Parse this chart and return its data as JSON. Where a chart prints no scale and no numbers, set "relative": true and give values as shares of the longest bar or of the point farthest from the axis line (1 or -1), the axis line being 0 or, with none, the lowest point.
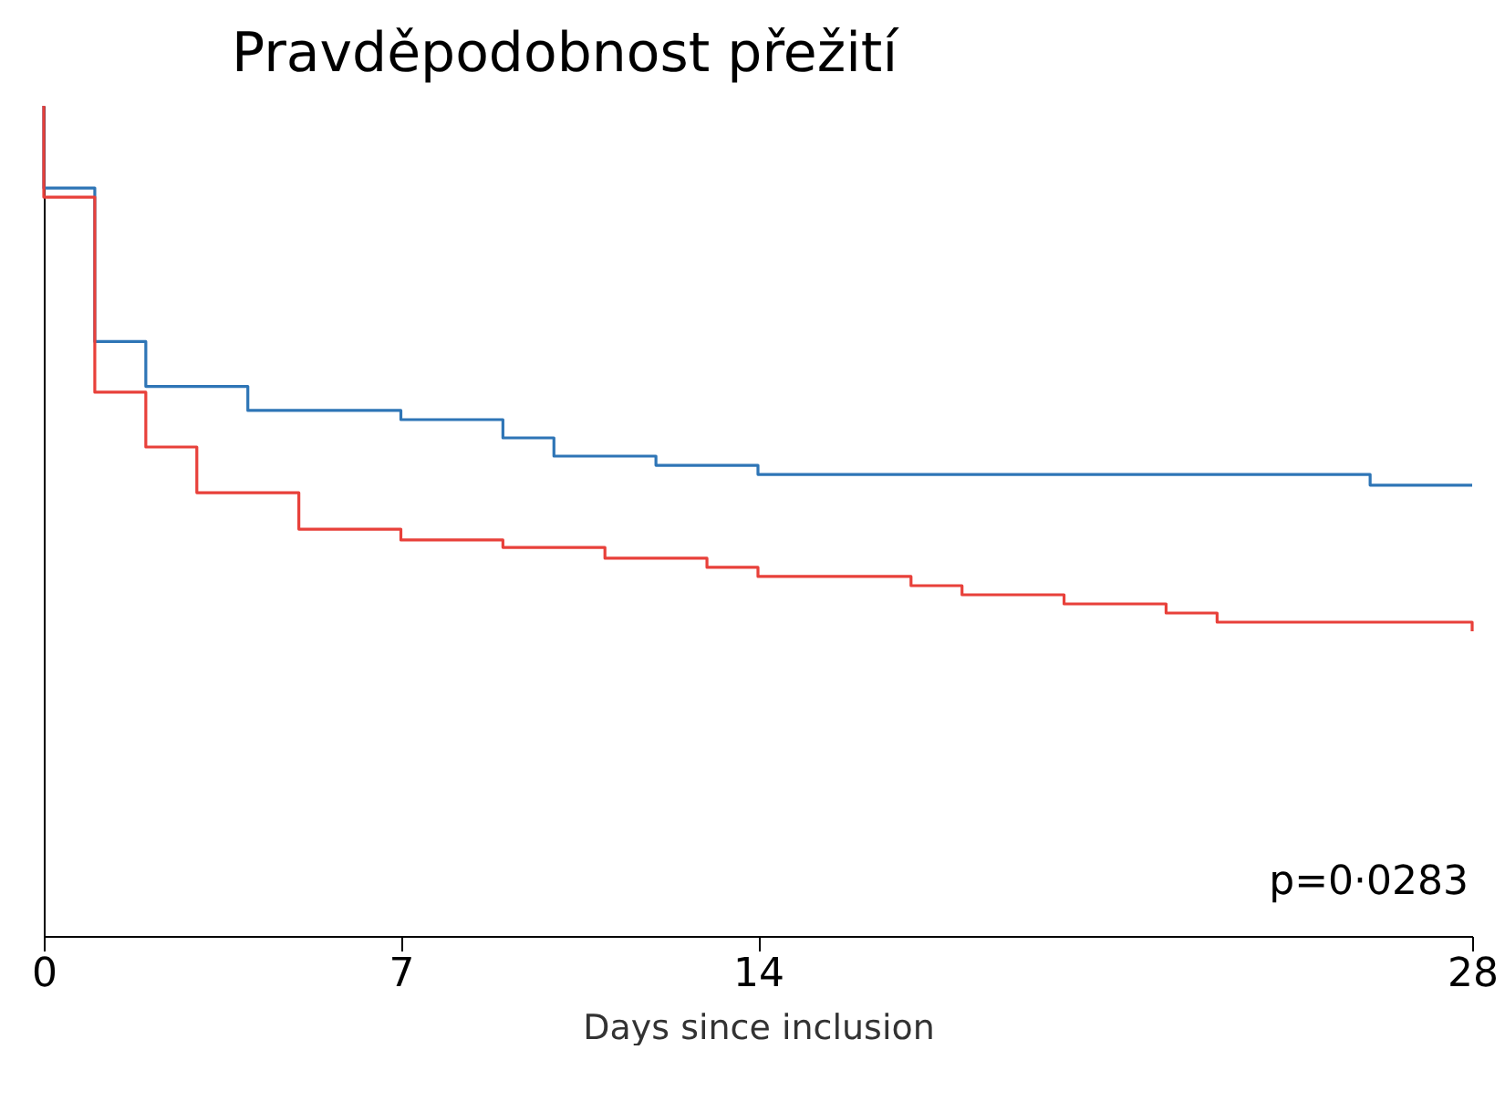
{
  "chart_data": {
    "type": "step",
    "title": "Pravděpodobnost přežití",
    "xlabel": "Days since inclusion",
    "relative": true,
    "xlim": [
      0,
      28
    ],
    "xticks": [
      0,
      7,
      14,
      28
    ],
    "grid": false,
    "legend": false,
    "marker": "none",
    "line_style": "solid",
    "series": [
      {
        "color": "#2e75b6",
        "x": [
          0,
          0,
          1,
          2,
          4,
          7,
          9,
          10,
          12,
          14,
          26,
          28
        ],
        "values": [
          1,
          0.901,
          0.716,
          0.662,
          0.633,
          0.622,
          0.6,
          0.578,
          0.567,
          0.556,
          0.543,
          0.543
        ]
      },
      {
        "color": "#e8403a",
        "x": [
          0,
          0,
          1,
          2,
          3,
          5,
          7,
          9,
          11,
          13,
          14,
          17,
          18,
          20,
          22,
          23,
          28,
          28
        ],
        "values": [
          1,
          0.89,
          0.655,
          0.589,
          0.534,
          0.49,
          0.477,
          0.468,
          0.455,
          0.444,
          0.433,
          0.422,
          0.411,
          0.4,
          0.389,
          0.378,
          0.378,
          0.367
        ]
      }
    ],
    "annotations": [
      "p=0·0283"
    ]
  }
}
